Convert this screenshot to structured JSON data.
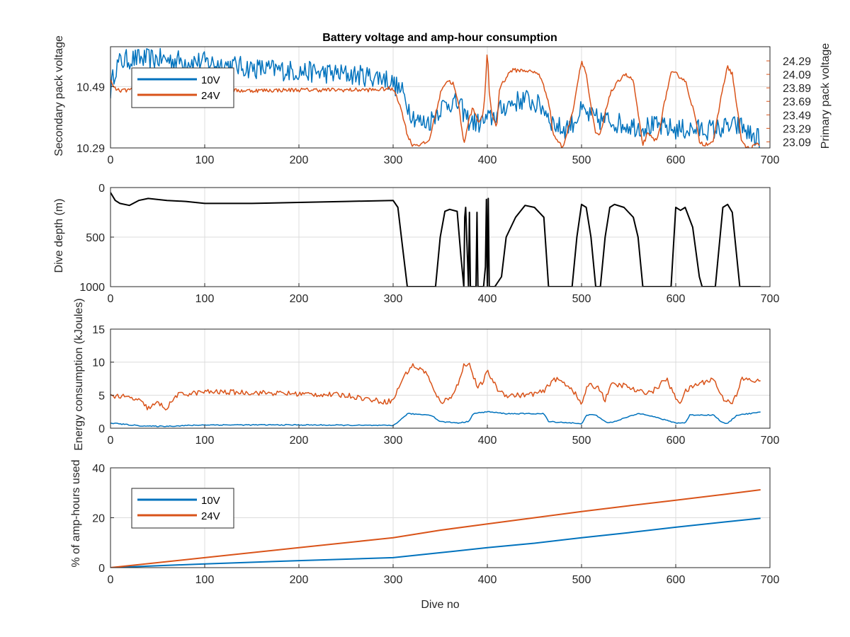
{
  "figure_title": "Battery voltage and amp-hour consumption",
  "colors": {
    "series10V": "#0072BD",
    "series24V": "#D95319",
    "depth": "#000000",
    "axis": "#262626"
  },
  "chart_data": [
    {
      "id": "voltage",
      "type": "line",
      "title": "Battery voltage and amp-hour consumption",
      "xlabel": "",
      "ylabel_left": "Secondary pack voltage",
      "ylabel_right": "Primary pack voltage",
      "xlim": [
        0,
        700
      ],
      "xticks": [
        0,
        100,
        200,
        300,
        400,
        500,
        600,
        700
      ],
      "ylim_left": [
        10.29,
        10.62
      ],
      "yticks_left": [
        10.29,
        10.49
      ],
      "ylim_right": [
        23.0,
        24.5
      ],
      "yticks_right": [
        23.09,
        23.29,
        23.49,
        23.69,
        23.89,
        24.09,
        24.29
      ],
      "grid": true,
      "legend": {
        "placement": "top-left",
        "entries": [
          "10V",
          "24V"
        ]
      },
      "series": [
        {
          "name": "10V",
          "axis": "left",
          "noise": 0.035,
          "x": [
            0,
            5,
            10,
            20,
            50,
            100,
            150,
            200,
            250,
            290,
            300,
            310,
            320,
            330,
            340,
            350,
            360,
            370,
            380,
            390,
            400,
            410,
            420,
            440,
            460,
            470,
            480,
            490,
            500,
            510,
            520,
            530,
            540,
            560,
            580,
            600,
            620,
            640,
            660,
            670,
            680,
            690
          ],
          "y": [
            10.48,
            10.55,
            10.57,
            10.58,
            10.58,
            10.57,
            10.55,
            10.54,
            10.53,
            10.52,
            10.5,
            10.47,
            10.4,
            10.37,
            10.38,
            10.42,
            10.44,
            10.43,
            10.38,
            10.37,
            10.38,
            10.4,
            10.43,
            10.45,
            10.42,
            10.37,
            10.35,
            10.37,
            10.41,
            10.39,
            10.38,
            10.38,
            10.37,
            10.36,
            10.36,
            10.35,
            10.35,
            10.35,
            10.36,
            10.36,
            10.33,
            10.32
          ]
        },
        {
          "name": "24V",
          "axis": "right",
          "x": [
            0,
            3,
            8,
            15,
            40,
            80,
            150,
            200,
            250,
            280,
            295,
            302,
            310,
            315,
            320,
            330,
            338,
            345,
            352,
            358,
            364,
            370,
            375,
            380,
            385,
            390,
            395,
            398,
            400,
            402,
            405,
            410,
            413,
            418,
            425,
            440,
            455,
            465,
            470,
            480,
            490,
            495,
            500,
            505,
            510,
            515,
            520,
            530,
            545,
            555,
            560,
            565,
            570,
            580,
            590,
            595,
            600,
            610,
            620,
            625,
            630,
            640,
            650,
            655,
            660,
            665,
            670,
            675,
            680,
            685,
            690
          ],
          "y": [
            24.0,
            23.9,
            23.85,
            23.85,
            23.9,
            23.85,
            23.85,
            23.86,
            23.86,
            23.86,
            23.88,
            23.85,
            23.5,
            23.2,
            23.05,
            23.05,
            23.1,
            23.5,
            23.9,
            24.0,
            23.95,
            23.6,
            23.05,
            23.4,
            23.6,
            23.4,
            23.45,
            23.9,
            24.5,
            23.8,
            23.5,
            23.3,
            23.9,
            24.0,
            24.15,
            24.15,
            24.1,
            23.7,
            23.2,
            23.0,
            23.5,
            23.9,
            24.3,
            24.1,
            23.6,
            23.2,
            23.2,
            23.8,
            24.1,
            24.0,
            23.5,
            23.05,
            23.2,
            23.1,
            23.8,
            24.1,
            24.1,
            24.0,
            23.5,
            23.1,
            23.05,
            23.1,
            23.9,
            24.2,
            24.1,
            23.6,
            23.1,
            23.0,
            23.0,
            23.05,
            23.05
          ]
        }
      ]
    },
    {
      "id": "depth",
      "type": "line",
      "title": "",
      "xlabel": "",
      "ylabel": "Dive depth (m)",
      "xlim": [
        0,
        700
      ],
      "xticks": [
        0,
        100,
        200,
        300,
        400,
        500,
        600,
        700
      ],
      "ylim": [
        0,
        1000
      ],
      "yticks": [
        0,
        500,
        1000
      ],
      "y_reversed": true,
      "grid": true,
      "series": [
        {
          "name": "Dive depth",
          "x": [
            0,
            5,
            10,
            20,
            30,
            40,
            60,
            80,
            100,
            150,
            200,
            250,
            300,
            305,
            310,
            315,
            345,
            350,
            355,
            360,
            368,
            372,
            375,
            376,
            377,
            380,
            381,
            382,
            384,
            386,
            388,
            389,
            390,
            392,
            394,
            396,
            398,
            399,
            400,
            401,
            402,
            404,
            408,
            415,
            420,
            430,
            440,
            450,
            460,
            465,
            490,
            495,
            500,
            505,
            510,
            515,
            520,
            525,
            530,
            535,
            545,
            555,
            560,
            565,
            595,
            600,
            605,
            610,
            618,
            625,
            628,
            632,
            642,
            650,
            655,
            660,
            668,
            672,
            690
          ],
          "y": [
            50,
            130,
            160,
            180,
            130,
            110,
            130,
            140,
            160,
            160,
            150,
            140,
            130,
            200,
            600,
            1000,
            1000,
            500,
            240,
            220,
            240,
            700,
            1000,
            300,
            200,
            1000,
            250,
            1000,
            1000,
            1000,
            1000,
            250,
            1000,
            1000,
            1000,
            1000,
            800,
            120,
            1000,
            110,
            1000,
            1000,
            1000,
            900,
            500,
            300,
            180,
            200,
            300,
            1000,
            1000,
            500,
            170,
            200,
            500,
            1000,
            1000,
            500,
            200,
            170,
            200,
            300,
            500,
            1000,
            1000,
            200,
            230,
            200,
            400,
            900,
            1000,
            1000,
            1000,
            200,
            170,
            250,
            1000,
            1000,
            1000
          ]
        }
      ]
    },
    {
      "id": "energy",
      "type": "line",
      "title": "",
      "xlabel": "",
      "ylabel": "Energy consumption (kJoules)",
      "xlim": [
        0,
        700
      ],
      "xticks": [
        0,
        100,
        200,
        300,
        400,
        500,
        600,
        700
      ],
      "ylim": [
        0,
        15
      ],
      "yticks": [
        0,
        5,
        10,
        15
      ],
      "grid": true,
      "series": [
        {
          "name": "24V",
          "x": [
            0,
            10,
            20,
            30,
            40,
            50,
            60,
            70,
            100,
            150,
            200,
            250,
            290,
            300,
            310,
            320,
            335,
            345,
            352,
            360,
            370,
            375,
            380,
            385,
            390,
            395,
            400,
            405,
            410,
            420,
            440,
            460,
            470,
            480,
            490,
            500,
            505,
            510,
            520,
            525,
            530,
            545,
            560,
            575,
            590,
            600,
            605,
            610,
            620,
            640,
            650,
            660,
            665,
            670,
            690
          ],
          "y": [
            5,
            4.8,
            4.6,
            4.2,
            3.0,
            3.8,
            3.0,
            5.0,
            5.5,
            5.4,
            5.2,
            5.0,
            4.0,
            4.2,
            7.5,
            9.5,
            8.5,
            5.0,
            4.0,
            4.5,
            7.0,
            9.5,
            10.0,
            8.0,
            6.0,
            7.0,
            8.5,
            7.5,
            6.0,
            5.0,
            5.0,
            5.5,
            7.5,
            7.0,
            6.0,
            3.5,
            6.0,
            6.5,
            6.0,
            4.0,
            6.5,
            6.5,
            5.5,
            5.5,
            7.5,
            4.5,
            4.0,
            5.5,
            6.5,
            7.5,
            4.5,
            4.0,
            5.0,
            7.5,
            7.0
          ]
        },
        {
          "name": "10V",
          "x": [
            0,
            20,
            40,
            60,
            100,
            200,
            300,
            310,
            315,
            340,
            350,
            370,
            380,
            385,
            400,
            420,
            460,
            465,
            490,
            500,
            505,
            515,
            525,
            530,
            560,
            565,
            595,
            600,
            610,
            615,
            640,
            650,
            655,
            665,
            690
          ],
          "y": [
            0.8,
            0.5,
            0.3,
            0.3,
            0.5,
            0.5,
            0.4,
            1.5,
            2.2,
            2.0,
            1.0,
            0.8,
            1.0,
            2.2,
            2.5,
            2.2,
            2.2,
            1.0,
            0.8,
            0.6,
            2.0,
            2.0,
            1.0,
            0.8,
            2.2,
            2.2,
            1.0,
            0.8,
            0.8,
            2.0,
            2.0,
            0.8,
            0.7,
            2.0,
            2.4
          ]
        }
      ]
    },
    {
      "id": "amphours",
      "type": "line",
      "title": "",
      "xlabel": "Dive no",
      "ylabel": "% of amp-hours used",
      "xlim": [
        0,
        700
      ],
      "xticks": [
        0,
        100,
        200,
        300,
        400,
        500,
        600,
        700
      ],
      "ylim": [
        0,
        40
      ],
      "yticks": [
        0,
        20,
        40
      ],
      "grid": true,
      "legend": {
        "placement": "bottom-left",
        "entries": [
          "10V",
          "24V"
        ]
      },
      "series": [
        {
          "name": "10V",
          "x": [
            0,
            100,
            200,
            300,
            350,
            400,
            450,
            500,
            550,
            600,
            650,
            690
          ],
          "y": [
            0,
            1.5,
            2.8,
            4.0,
            6.0,
            8.0,
            9.8,
            12.0,
            14.0,
            16.2,
            18.2,
            19.8
          ]
        },
        {
          "name": "24V",
          "x": [
            0,
            100,
            200,
            300,
            350,
            400,
            450,
            500,
            550,
            600,
            650,
            690
          ],
          "y": [
            0,
            4.0,
            8.0,
            12.0,
            15.0,
            17.5,
            20.0,
            22.5,
            24.8,
            27.0,
            29.3,
            31.2
          ]
        }
      ]
    }
  ]
}
